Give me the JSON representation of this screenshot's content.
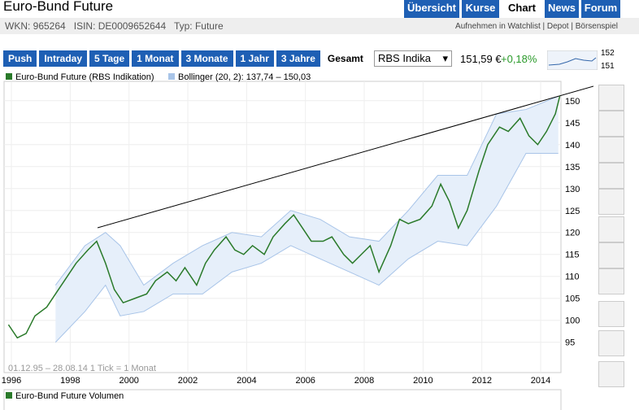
{
  "header": {
    "title": "Euro-Bund Future",
    "tabs": [
      "Übersicht",
      "Kurse",
      "Chart",
      "News",
      "Forum"
    ],
    "active_tab": "Chart",
    "info": [
      "WKN: 965264",
      "ISIN: DE0009652644",
      "Typ: Future"
    ],
    "links": [
      "Aufnehmen in Watchlist",
      "Depot",
      "Börsenspiel"
    ]
  },
  "toolbar": {
    "ranges": [
      "Push",
      "Intraday",
      "5 Tage",
      "1 Monat",
      "3 Monate",
      "1 Jahr",
      "3 Jahre",
      "Gesamt"
    ],
    "active_range": "Gesamt",
    "select": "RBS Indika",
    "price": "151,59 €",
    "change": "+0,18%",
    "mini_labels": [
      "152",
      "151"
    ]
  },
  "chart_data": {
    "type": "line",
    "legend": [
      "Euro-Bund Future (RBS Indikation)",
      "Bollinger (20, 2): 137,74 – 150,03"
    ],
    "footnote": "01.12.95 – 28.08.14   1 Tick = 1 Monat",
    "volume_label": "Euro-Bund Future Volumen",
    "xlim": [
      1995.75,
      2014.69
    ],
    "ylim": [
      88.1,
      154.4
    ],
    "xticks": [
      1996,
      1998,
      2000,
      2002,
      2004,
      2006,
      2008,
      2010,
      2012,
      2014
    ],
    "yticks": [
      95,
      100,
      105,
      110,
      115,
      120,
      125,
      130,
      135,
      140,
      145,
      150
    ],
    "series": [
      {
        "name": "Euro-Bund Future (RBS Indikation)",
        "color": "#2a7a2a",
        "x": [
          1995.9,
          1996.2,
          1996.5,
          1996.8,
          1997.2,
          1997.5,
          1997.8,
          1998.2,
          1998.6,
          1998.9,
          1999.2,
          1999.5,
          1999.8,
          2000.2,
          2000.6,
          2000.9,
          2001.3,
          2001.6,
          2001.9,
          2002.3,
          2002.6,
          2002.9,
          2003.3,
          2003.6,
          2003.9,
          2004.2,
          2004.6,
          2004.9,
          2005.3,
          2005.6,
          2005.9,
          2006.2,
          2006.6,
          2006.9,
          2007.3,
          2007.6,
          2007.9,
          2008.2,
          2008.5,
          2008.9,
          2009.2,
          2009.5,
          2009.9,
          2010.3,
          2010.6,
          2010.9,
          2011.2,
          2011.5,
          2011.9,
          2012.2,
          2012.6,
          2012.9,
          2013.3,
          2013.6,
          2013.9,
          2014.2,
          2014.5,
          2014.65
        ],
        "values": [
          99,
          96,
          97,
          101,
          103,
          106,
          109,
          113,
          116,
          118,
          113,
          107,
          104,
          105,
          106,
          109,
          111,
          109,
          112,
          108,
          113,
          116,
          119,
          116,
          115,
          117,
          115,
          119,
          122,
          124,
          121,
          118,
          118,
          119,
          115,
          113,
          115,
          117,
          111,
          117,
          123,
          122,
          123,
          126,
          131,
          127,
          121,
          125,
          134,
          140,
          144,
          143,
          146,
          142,
          140,
          143,
          147,
          151
        ]
      }
    ],
    "bollinger": {
      "color": "#a8c4e8",
      "x": [
        1997.5,
        1998.5,
        1999.2,
        1999.7,
        2000.5,
        2001.5,
        2002.5,
        2003.5,
        2004.5,
        2005.5,
        2006.5,
        2007.5,
        2008.5,
        2009.5,
        2010.5,
        2011.5,
        2012.5,
        2013.5,
        2014.6
      ],
      "upper": [
        108,
        117,
        120,
        117,
        108,
        113,
        117,
        120,
        119,
        125,
        123,
        119,
        118,
        125,
        133,
        133,
        147,
        148,
        151
      ],
      "lower": [
        95,
        102,
        108,
        101,
        102,
        106,
        106,
        111,
        113,
        117,
        114,
        111,
        108,
        114,
        118,
        117,
        126,
        138,
        138
      ]
    }
  }
}
